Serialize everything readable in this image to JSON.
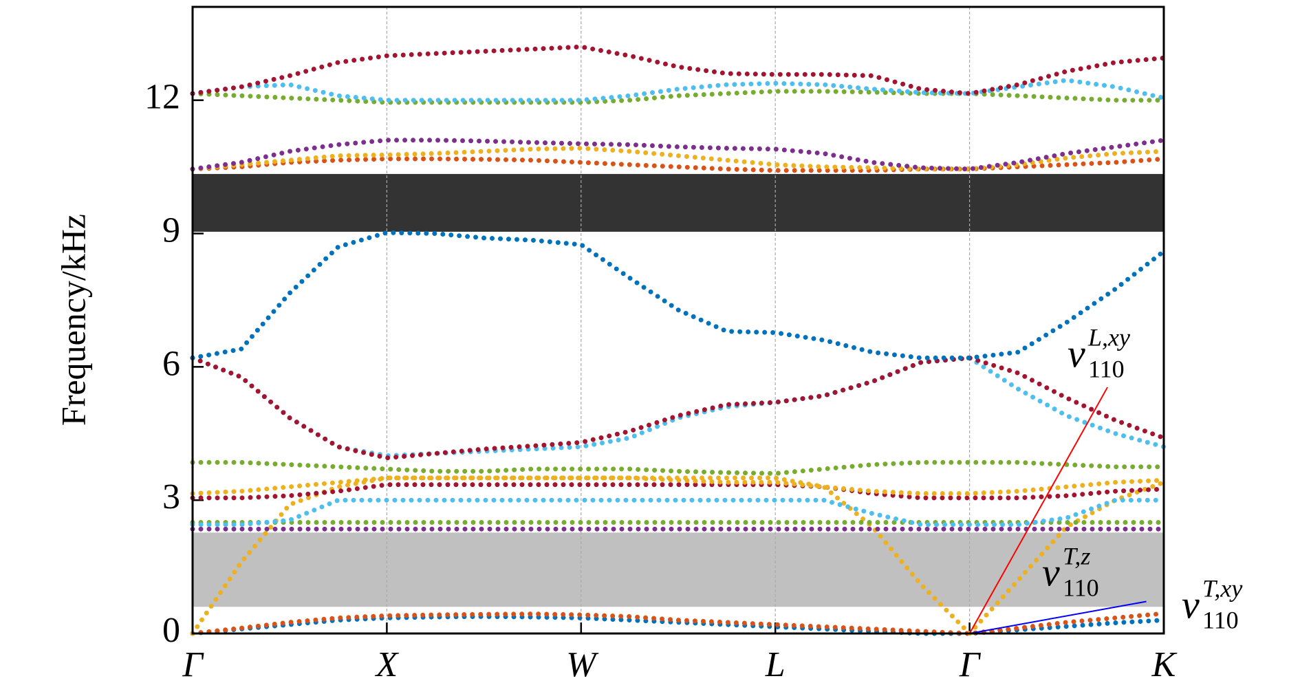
{
  "chart_data": {
    "type": "dotted-line",
    "ylabel": "Frequency/kHz",
    "x": [
      0,
      0.25,
      0.5,
      0.75,
      1,
      1.25,
      1.5,
      1.75,
      2,
      2.25,
      2.5,
      2.75,
      3,
      3.25,
      3.5,
      3.75,
      4,
      4.25,
      4.5,
      4.75,
      5
    ],
    "xlim": [
      0,
      5
    ],
    "xticks": [
      {
        "value": 0,
        "label": "Γ"
      },
      {
        "value": 1,
        "label": "X"
      },
      {
        "value": 2,
        "label": "W"
      },
      {
        "value": 3,
        "label": "L"
      },
      {
        "value": 4,
        "label": "Γ"
      },
      {
        "value": 5,
        "label": "K"
      }
    ],
    "ylim": [
      0,
      14.1
    ],
    "yticks": [
      0,
      3,
      6,
      9,
      12
    ],
    "grid": "x",
    "band_gaps": [
      {
        "ylim": [
          9.04,
          10.34
        ],
        "color": "#333333"
      },
      {
        "ylim": [
          0.6,
          2.27
        ],
        "color": "#c0c0c0"
      }
    ],
    "series": [
      {
        "color": "#0072bd",
        "values": [
          0,
          0.1,
          0.2,
          0.3,
          0.35,
          0.37,
          0.38,
          0.37,
          0.35,
          0.3,
          0.25,
          0.2,
          0.15,
          0.1,
          0.05,
          0,
          0,
          0.08,
          0.16,
          0.24,
          0.3
        ]
      },
      {
        "color": "#d95319",
        "values": [
          0,
          0.12,
          0.25,
          0.35,
          0.4,
          0.42,
          0.43,
          0.44,
          0.42,
          0.38,
          0.3,
          0.25,
          0.2,
          0.15,
          0.1,
          0.05,
          0,
          0.12,
          0.25,
          0.35,
          0.45
        ]
      },
      {
        "color": "#edb120",
        "values": [
          0,
          1.6,
          2.9,
          3.3,
          3.5,
          3.5,
          3.5,
          3.5,
          3.5,
          3.5,
          3.5,
          3.5,
          3.5,
          3.3,
          2.4,
          1.1,
          0,
          1.2,
          2.4,
          3.0,
          3.4
        ]
      },
      {
        "color": "#7e2f8e",
        "values": [
          2.35,
          2.35,
          2.35,
          2.35,
          2.35,
          2.35,
          2.35,
          2.35,
          2.35,
          2.35,
          2.35,
          2.35,
          2.35,
          2.35,
          2.35,
          2.35,
          2.35,
          2.35,
          2.35,
          2.35,
          2.35
        ]
      },
      {
        "color": "#77ac30",
        "values": [
          2.5,
          2.5,
          2.5,
          2.5,
          2.5,
          2.5,
          2.5,
          2.5,
          2.5,
          2.5,
          2.5,
          2.5,
          2.5,
          2.5,
          2.5,
          2.5,
          2.5,
          2.5,
          2.5,
          2.5,
          2.5
        ]
      },
      {
        "color": "#4dbeee",
        "values": [
          2.45,
          2.45,
          2.55,
          3.0,
          3.0,
          3.0,
          3.0,
          3.0,
          3.0,
          3.0,
          3.0,
          3.0,
          3.0,
          3.0,
          2.7,
          2.45,
          2.45,
          2.45,
          2.6,
          3.0,
          3.0
        ]
      },
      {
        "color": "#a2142f",
        "values": [
          3.05,
          3.05,
          3.1,
          3.2,
          3.35,
          3.35,
          3.35,
          3.35,
          3.35,
          3.35,
          3.35,
          3.35,
          3.35,
          3.3,
          3.15,
          3.05,
          3.05,
          3.05,
          3.1,
          3.2,
          3.25
        ]
      },
      {
        "color": "#edb120",
        "values": [
          3.15,
          3.2,
          3.3,
          3.4,
          3.5,
          3.5,
          3.5,
          3.5,
          3.5,
          3.5,
          3.45,
          3.4,
          3.4,
          3.3,
          3.2,
          3.15,
          3.15,
          3.2,
          3.3,
          3.4,
          3.45
        ]
      },
      {
        "color": "#77ac30",
        "values": [
          3.85,
          3.85,
          3.8,
          3.75,
          3.7,
          3.65,
          3.65,
          3.7,
          3.7,
          3.7,
          3.65,
          3.62,
          3.6,
          3.7,
          3.8,
          3.85,
          3.85,
          3.85,
          3.8,
          3.75,
          3.75
        ]
      },
      {
        "color": "#4dbeee",
        "values": [
          6.2,
          5.77,
          4.85,
          4.2,
          4.0,
          4.05,
          4.1,
          4.15,
          4.2,
          4.4,
          4.85,
          5.1,
          5.2,
          5.35,
          5.67,
          6.1,
          6.2,
          5.5,
          4.9,
          4.5,
          4.2
        ]
      },
      {
        "color": "#a2142f",
        "values": [
          6.2,
          5.77,
          4.85,
          4.2,
          3.95,
          4.05,
          4.15,
          4.22,
          4.3,
          4.55,
          4.9,
          5.15,
          5.2,
          5.35,
          5.67,
          6.1,
          6.2,
          5.86,
          5.3,
          4.8,
          4.4
        ]
      },
      {
        "color": "#0072bd",
        "values": [
          6.2,
          6.4,
          7.66,
          8.7,
          9.02,
          9.0,
          8.9,
          8.85,
          8.75,
          8.0,
          7.28,
          6.8,
          6.77,
          6.6,
          6.33,
          6.2,
          6.2,
          6.33,
          7.0,
          7.75,
          8.6
        ]
      },
      {
        "color": "#d95319",
        "values": [
          10.45,
          10.5,
          10.6,
          10.65,
          10.68,
          10.68,
          10.67,
          10.65,
          10.6,
          10.55,
          10.5,
          10.45,
          10.42,
          10.42,
          10.42,
          10.45,
          10.45,
          10.5,
          10.55,
          10.6,
          10.68
        ]
      },
      {
        "color": "#edb120",
        "values": [
          10.45,
          10.55,
          10.65,
          10.75,
          10.77,
          10.8,
          10.85,
          10.9,
          10.92,
          10.85,
          10.75,
          10.65,
          10.55,
          10.5,
          10.48,
          10.45,
          10.45,
          10.55,
          10.7,
          10.8,
          10.85
        ]
      },
      {
        "color": "#7e2f8e",
        "values": [
          10.45,
          10.6,
          10.85,
          11.0,
          11.1,
          11.1,
          11.08,
          11.05,
          11.02,
          11.0,
          10.95,
          10.92,
          10.9,
          10.8,
          10.6,
          10.48,
          10.45,
          10.6,
          10.8,
          10.95,
          11.1
        ]
      },
      {
        "color": "#77ac30",
        "values": [
          12.15,
          12.1,
          12.05,
          12.0,
          11.95,
          11.95,
          11.95,
          11.95,
          11.95,
          12.0,
          12.1,
          12.15,
          12.2,
          12.2,
          12.18,
          12.15,
          12.15,
          12.1,
          12.05,
          12.0,
          12.0
        ]
      },
      {
        "color": "#4dbeee",
        "values": [
          12.15,
          12.3,
          12.35,
          12.1,
          12.0,
          12.0,
          12.0,
          12.0,
          12.0,
          12.1,
          12.25,
          12.35,
          12.38,
          12.35,
          12.25,
          12.17,
          12.15,
          12.3,
          12.45,
          12.3,
          12.05
        ]
      },
      {
        "color": "#a2142f",
        "values": [
          12.15,
          12.3,
          12.55,
          12.85,
          13.0,
          13.05,
          13.1,
          13.15,
          13.2,
          13.0,
          12.75,
          12.6,
          12.58,
          12.58,
          12.55,
          12.25,
          12.15,
          12.35,
          12.65,
          12.85,
          12.95
        ]
      }
    ],
    "fit_lines": [
      {
        "color": "#ff0000",
        "x": [
          4,
          4.71
        ],
        "y": [
          0,
          5.54
        ]
      },
      {
        "color": "#0000ff",
        "x": [
          4,
          4.91
        ],
        "y": [
          0,
          0.72
        ]
      }
    ],
    "annotations": [
      {
        "text": "v",
        "sup": "L,xy",
        "sub": "110"
      },
      {
        "text": "v",
        "sup": "T,z",
        "sub": "110"
      },
      {
        "text": "v",
        "sup": "T,xy",
        "sub": "110"
      }
    ]
  }
}
